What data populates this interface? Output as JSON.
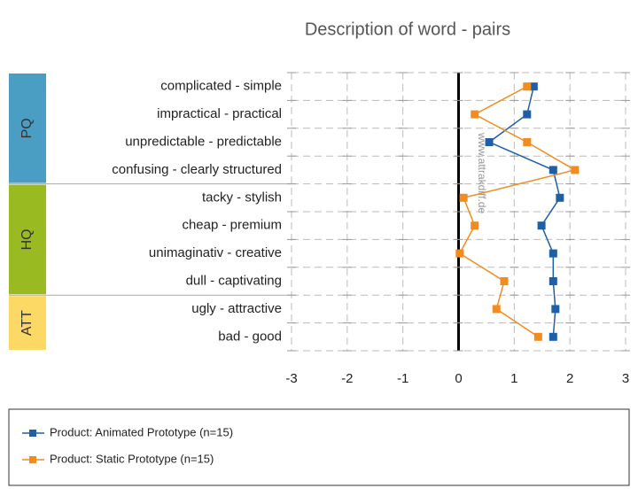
{
  "chart_data": {
    "type": "profile",
    "title": "Description of word - pairs",
    "categories": [
      "complicated - simple",
      "impractical - practical",
      "unpredictable - predictable",
      "confusing - clearly structured",
      "tacky - stylish",
      "cheap - premium",
      "unimaginativ - creative",
      "dull - captivating",
      "ugly - attractive",
      "bad - good"
    ],
    "groups": [
      {
        "name": "PQ",
        "color": "#4a9ec4"
      },
      {
        "name": "HQ",
        "color": "#9aba22"
      },
      {
        "name": "ATT",
        "color": "#fcd864"
      }
    ],
    "series": [
      {
        "name": "Product: Animated Prototype (n=15)",
        "color": "#1f5fa8",
        "values": [
          1.35,
          1.23,
          0.55,
          1.7,
          1.82,
          1.49,
          1.7,
          1.7,
          1.74,
          1.7
        ]
      },
      {
        "name": "Product: Static Prototype (n=15)",
        "color": "#f28c1e",
        "values": [
          1.23,
          0.29,
          1.23,
          2.09,
          0.09,
          0.29,
          0.02,
          0.82,
          0.68,
          1.43
        ]
      }
    ],
    "xlim": [
      -3,
      3
    ],
    "xticks": [
      -3,
      -2,
      -1,
      0,
      1,
      2,
      3
    ],
    "grid": true,
    "watermark": "www.attrakdiff.de"
  }
}
